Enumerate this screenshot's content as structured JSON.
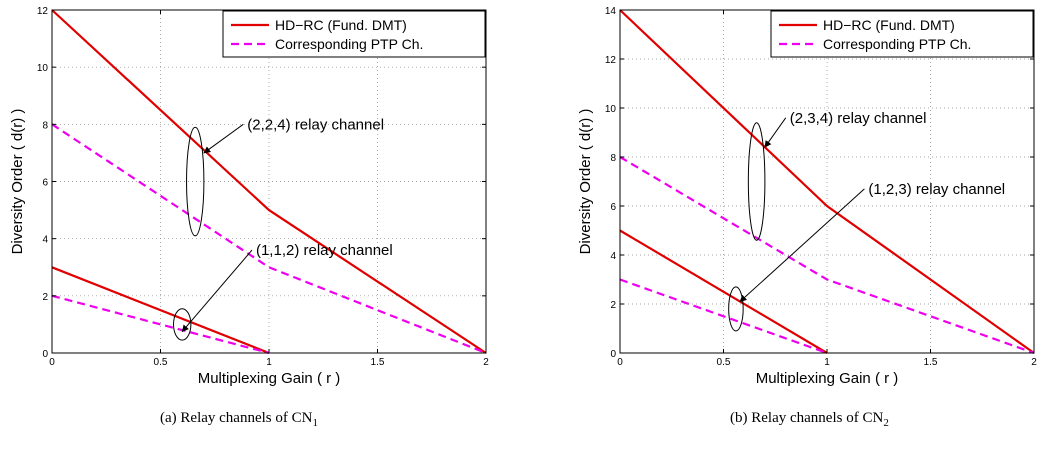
{
  "chart_data": [
    {
      "type": "line",
      "caption": {
        "tag": "(a)",
        "text": "Relay channels of CN",
        "sub": "1"
      },
      "xlabel": "Multiplexing Gain ( r )",
      "ylabel": "Diversity Order  ( d(r) )",
      "xlim": [
        0,
        2
      ],
      "ylim": [
        0,
        12
      ],
      "xticks": [
        0,
        0.5,
        1,
        1.5,
        2
      ],
      "xtick_labels": [
        "0",
        "0.5",
        "1",
        "1.5",
        "2"
      ],
      "yticks": [
        0,
        2,
        4,
        6,
        8,
        10,
        12
      ],
      "ytick_labels": [
        "0",
        "2",
        "4",
        "6",
        "8",
        "10",
        "12"
      ],
      "grid": true,
      "legend": {
        "position": "top-right",
        "entries": [
          {
            "label": "HD−RC (Fund. DMT)",
            "color": "#e00000",
            "style": "solid"
          },
          {
            "label": "Corresponding PTP Ch.",
            "color": "#ee00ee",
            "style": "dashed"
          }
        ]
      },
      "series": [
        {
          "legend_index": 0,
          "color": "#e00000",
          "style": "solid",
          "x": [
            0,
            1,
            2
          ],
          "y": [
            12,
            5,
            0
          ]
        },
        {
          "legend_index": 1,
          "color": "#ee00ee",
          "style": "dashed",
          "x": [
            0,
            1,
            2
          ],
          "y": [
            8,
            3,
            0
          ]
        },
        {
          "legend_index": 0,
          "color": "#e00000",
          "style": "solid",
          "x": [
            0,
            1
          ],
          "y": [
            3,
            0
          ]
        },
        {
          "legend_index": 1,
          "color": "#ee00ee",
          "style": "dashed",
          "x": [
            0,
            1
          ],
          "y": [
            2,
            0
          ]
        }
      ],
      "annotations": [
        {
          "text": "(2,2,4) relay channel",
          "text_at": [
            0.9,
            8
          ],
          "arrow_to": [
            0.7,
            7
          ],
          "ellipse": {
            "cx": 0.66,
            "cy": 6.0,
            "rx": 0.04,
            "ry": 1.9
          }
        },
        {
          "text": "(1,1,2) relay channel",
          "text_at": [
            0.94,
            3.6
          ],
          "arrow_to": [
            0.6,
            0.75
          ],
          "ellipse": {
            "cx": 0.6,
            "cy": 1.0,
            "rx": 0.04,
            "ry": 0.55
          }
        }
      ]
    },
    {
      "type": "line",
      "caption": {
        "tag": "(b)",
        "text": "Relay channels of CN",
        "sub": "2"
      },
      "xlabel": "Multiplexing Gain ( r )",
      "ylabel": "Diversity Order  ( d(r) )",
      "xlim": [
        0,
        2
      ],
      "ylim": [
        0,
        14
      ],
      "xticks": [
        0,
        0.5,
        1,
        1.5,
        2
      ],
      "xtick_labels": [
        "0",
        "0.5",
        "1",
        "1.5",
        "2"
      ],
      "yticks": [
        0,
        2,
        4,
        6,
        8,
        10,
        12,
        14
      ],
      "ytick_labels": [
        "0",
        "2",
        "4",
        "6",
        "8",
        "10",
        "12",
        "14"
      ],
      "grid": true,
      "legend": {
        "position": "top-right",
        "entries": [
          {
            "label": "HD−RC (Fund. DMT)",
            "color": "#e00000",
            "style": "solid"
          },
          {
            "label": "Corresponding PTP Ch.",
            "color": "#ee00ee",
            "style": "dashed"
          }
        ]
      },
      "series": [
        {
          "legend_index": 0,
          "color": "#e00000",
          "style": "solid",
          "x": [
            0,
            1,
            2
          ],
          "y": [
            14,
            6,
            0
          ]
        },
        {
          "legend_index": 1,
          "color": "#ee00ee",
          "style": "dashed",
          "x": [
            0,
            1,
            2
          ],
          "y": [
            8,
            3,
            0
          ]
        },
        {
          "legend_index": 0,
          "color": "#e00000",
          "style": "solid",
          "x": [
            0,
            1
          ],
          "y": [
            5,
            0
          ]
        },
        {
          "legend_index": 1,
          "color": "#ee00ee",
          "style": "dashed",
          "x": [
            0,
            1
          ],
          "y": [
            3,
            0
          ]
        }
      ],
      "annotations": [
        {
          "text": "(2,3,4) relay channel",
          "text_at": [
            0.82,
            9.6
          ],
          "arrow_to": [
            0.7,
            8.4
          ],
          "ellipse": {
            "cx": 0.66,
            "cy": 7.0,
            "rx": 0.04,
            "ry": 2.4
          }
        },
        {
          "text": "(1,2,3) relay channel",
          "text_at": [
            1.2,
            6.7
          ],
          "arrow_to": [
            0.58,
            2.1
          ],
          "ellipse": {
            "cx": 0.56,
            "cy": 1.8,
            "rx": 0.035,
            "ry": 0.9
          }
        }
      ]
    }
  ]
}
